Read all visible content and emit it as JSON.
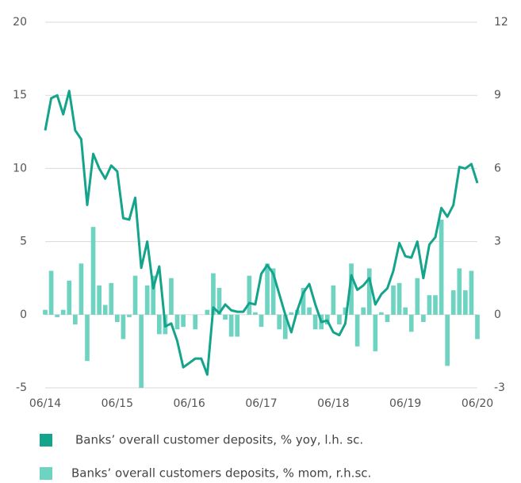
{
  "chart_data": {
    "type": "combo",
    "categories": [
      "06/14",
      null,
      null,
      null,
      null,
      null,
      null,
      null,
      null,
      null,
      null,
      null,
      "06/15",
      null,
      null,
      null,
      null,
      null,
      null,
      null,
      null,
      null,
      null,
      null,
      "06/16",
      null,
      null,
      null,
      null,
      null,
      null,
      null,
      null,
      null,
      null,
      null,
      "06/17",
      null,
      null,
      null,
      null,
      null,
      null,
      null,
      null,
      null,
      null,
      null,
      "06/18",
      null,
      null,
      null,
      null,
      null,
      null,
      null,
      null,
      null,
      null,
      null,
      "06/19",
      null,
      null,
      null,
      null,
      null,
      null,
      null,
      null,
      null,
      null,
      null,
      "06/20"
    ],
    "series": [
      {
        "name": "Banks’ overall customer deposits, % yoy, l.h. sc.",
        "type": "line",
        "color": "#14a38b",
        "axis": "y",
        "values": [
          12.6,
          14.8,
          15.0,
          13.7,
          15.3,
          12.6,
          12.0,
          7.5,
          11.0,
          10.0,
          9.3,
          10.2,
          9.8,
          6.6,
          6.5,
          8.0,
          3.2,
          5.0,
          1.8,
          3.3,
          -0.8,
          -0.6,
          -1.8,
          -3.6,
          -3.3,
          -3.0,
          -3.0,
          -4.1,
          0.5,
          0.1,
          0.7,
          0.3,
          0.2,
          0.2,
          0.8,
          0.7,
          2.8,
          3.4,
          2.8,
          1.4,
          0,
          -1.2,
          0.3,
          1.5,
          2.1,
          0.7,
          -0.5,
          -0.4,
          -1.2,
          -1.4,
          -0.6,
          2.7,
          1.7,
          2.0,
          2.5,
          0.7,
          1.4,
          1.8,
          3.0,
          4.9,
          4.0,
          3.9,
          5.0,
          2.5,
          4.8,
          5.3,
          7.3,
          6.7,
          7.5,
          10.1,
          10.0,
          10.3,
          9.0
        ]
      },
      {
        "name": "Banks’ overall customers deposits, % mom, r.h.sc.",
        "type": "bar",
        "color": "#6fd3c2",
        "axis": "y2",
        "values": [
          0.2,
          1.8,
          -0.1,
          0.2,
          1.4,
          -0.4,
          2.1,
          -1.9,
          3.6,
          1.2,
          0.4,
          1.3,
          -0.3,
          -1.0,
          -0.1,
          1.6,
          -3.0,
          1.2,
          1.6,
          -0.8,
          -0.8,
          1.5,
          -0.6,
          -0.5,
          0,
          -0.6,
          0,
          0.2,
          1.7,
          1.1,
          -0.2,
          -0.9,
          -0.9,
          0,
          1.6,
          0.1,
          -0.5,
          2.1,
          1.9,
          -0.6,
          -1.0,
          0.1,
          0.2,
          1.1,
          0.3,
          -0.6,
          -0.6,
          -0.4,
          1.2,
          -0.4,
          0.3,
          2.1,
          -1.3,
          0.3,
          1.9,
          -1.5,
          0.1,
          -0.3,
          1.2,
          1.3,
          0.3,
          -0.7,
          1.5,
          -0.3,
          0.8,
          0.8,
          3.9,
          -2.1,
          1.0,
          1.9,
          1.0,
          1.8,
          -1.0
        ]
      }
    ],
    "ylim": [
      -5,
      20
    ],
    "yticks": [
      -5,
      0,
      5,
      10,
      15,
      20
    ],
    "y2lim": [
      -3,
      12
    ],
    "y2ticks": [
      -3,
      0,
      3,
      6,
      9,
      12
    ],
    "grid": true
  }
}
